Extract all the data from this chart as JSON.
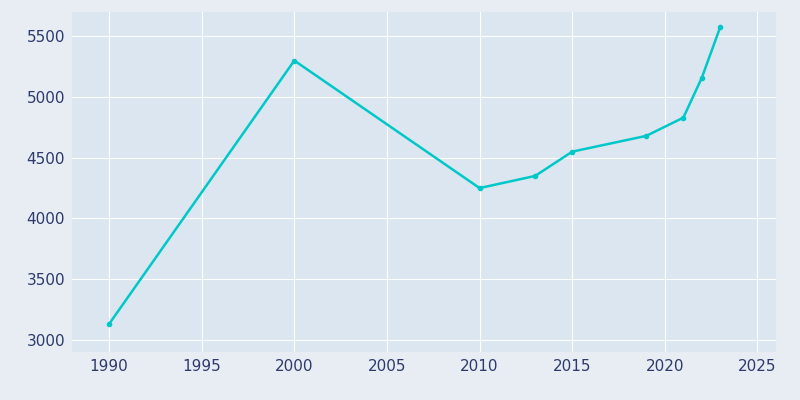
{
  "years": [
    1990,
    2000,
    2010,
    2013,
    2015,
    2019,
    2021,
    2022,
    2023
  ],
  "population": [
    3130,
    5300,
    4250,
    4350,
    4550,
    4680,
    4830,
    5160,
    5580
  ],
  "line_color": "#00c8c8",
  "bg_color": "#e8edf4",
  "plot_bg_color": "#dce6f0",
  "grid_color": "#ffffff",
  "tick_color": "#2d3a6b",
  "ylim": [
    2900,
    5700
  ],
  "xlim": [
    1988,
    2026
  ],
  "yticks": [
    3000,
    3500,
    4000,
    4500,
    5000,
    5500
  ],
  "xticks": [
    1990,
    1995,
    2000,
    2005,
    2010,
    2015,
    2020,
    2025
  ],
  "linewidth": 1.8,
  "markersize": 3
}
